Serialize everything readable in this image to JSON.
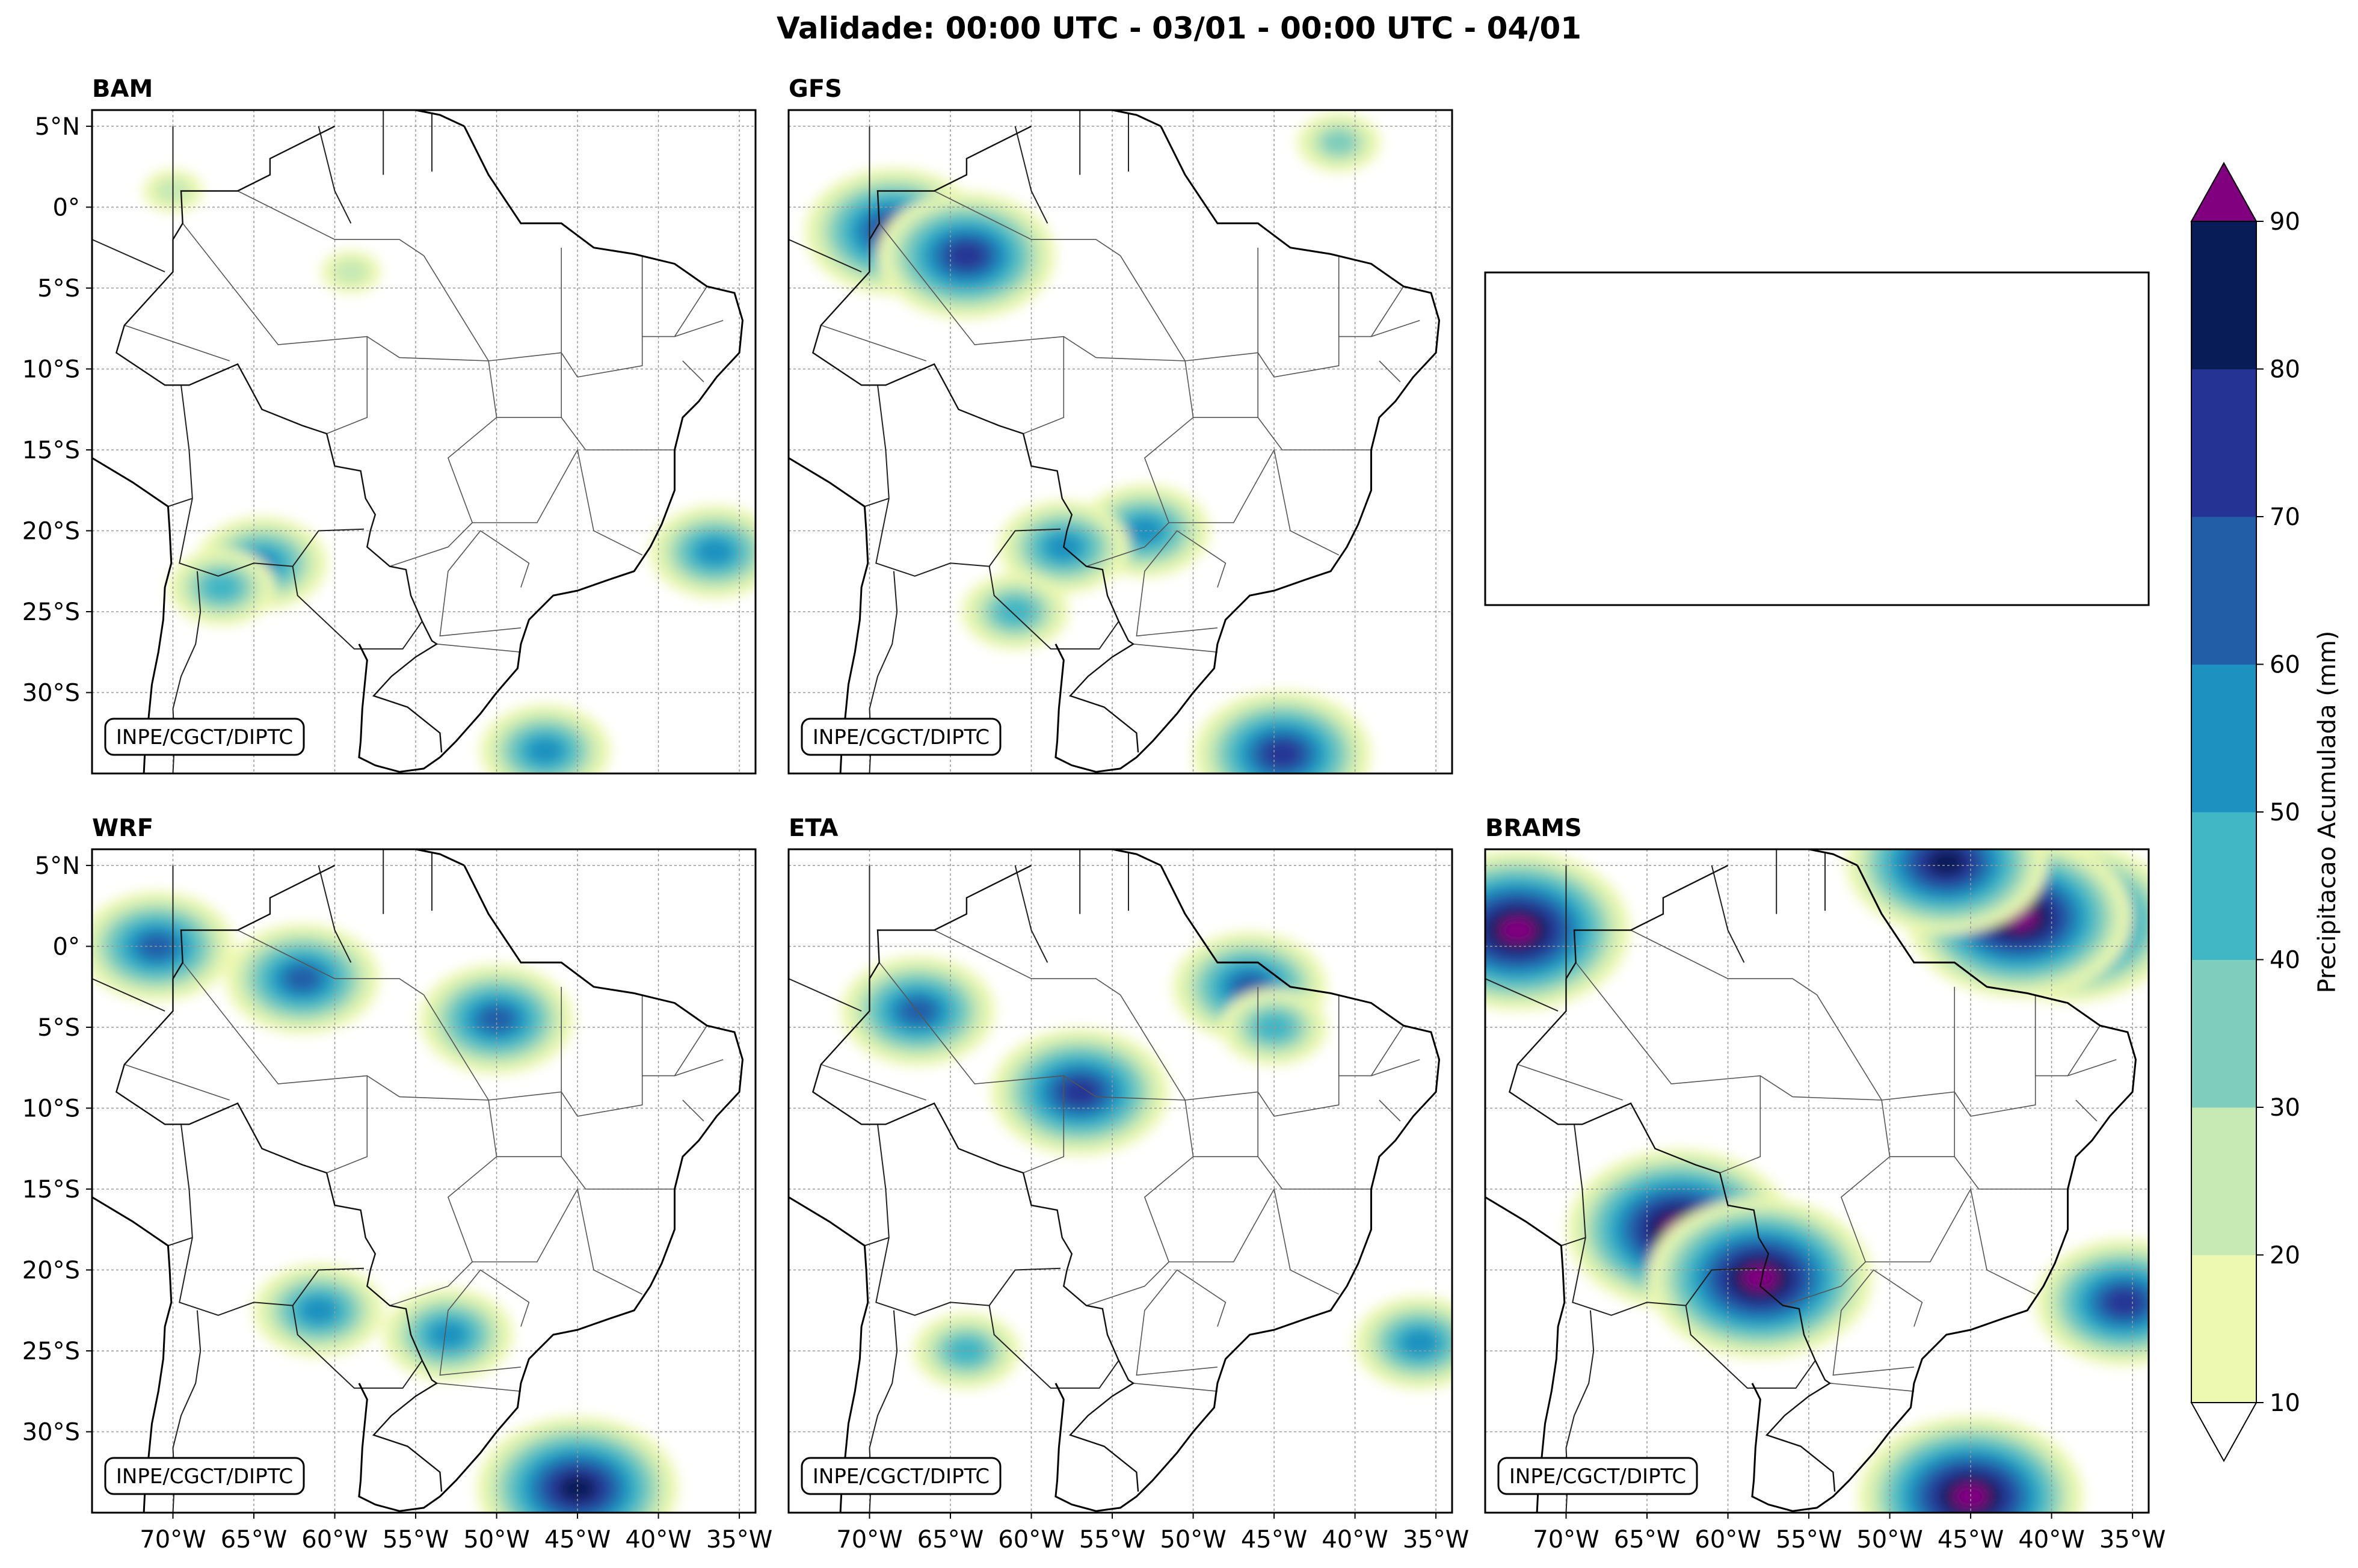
{
  "title": "Validade: 00:00 UTC - 03/01 - 00:00 UTC - 04/01",
  "credit": "INPE/CGCT/DIPTC",
  "lat_labels": [
    "5°N",
    "0°",
    "5°S",
    "10°S",
    "15°S",
    "20°S",
    "25°S",
    "30°S"
  ],
  "lon_labels": [
    "70°W",
    "65°W",
    "60°W",
    "55°W",
    "50°W",
    "45°W",
    "40°W",
    "35°W"
  ],
  "panels": [
    {
      "name": "BAM",
      "blobs": [
        {
          "lon": -47,
          "lat": -33.6,
          "level": 4
        },
        {
          "lon": -64.5,
          "lat": -22,
          "level": 4
        },
        {
          "lon": -36.5,
          "lat": -21.3,
          "level": 4
        },
        {
          "lon": -67,
          "lat": -23.5,
          "level": 3
        },
        {
          "lon": -59,
          "lat": -4,
          "level": 1
        },
        {
          "lon": -70,
          "lat": 1,
          "level": 1
        }
      ]
    },
    {
      "name": "GFS",
      "blobs": [
        {
          "lon": -68.5,
          "lat": -1.5,
          "level": 6
        },
        {
          "lon": -64,
          "lat": -3,
          "level": 6
        },
        {
          "lon": -44.5,
          "lat": -33.8,
          "level": 6
        },
        {
          "lon": -53,
          "lat": -20,
          "level": 4
        },
        {
          "lon": -58,
          "lat": -21,
          "level": 4
        },
        {
          "lon": -41,
          "lat": 4,
          "level": 2
        },
        {
          "lon": -61,
          "lat": -25,
          "level": 3
        }
      ]
    },
    {
      "name": "empty",
      "blobs": []
    },
    {
      "name": "WRF",
      "blobs": [
        {
          "lon": -45,
          "lat": -33.5,
          "level": 7
        },
        {
          "lon": -62,
          "lat": -2,
          "level": 5
        },
        {
          "lon": -50,
          "lat": -4.5,
          "level": 5
        },
        {
          "lon": -71,
          "lat": 0,
          "level": 5
        },
        {
          "lon": -61,
          "lat": -22.5,
          "level": 4
        },
        {
          "lon": -53,
          "lat": -24,
          "level": 4
        }
      ]
    },
    {
      "name": "ETA",
      "blobs": [
        {
          "lon": -57,
          "lat": -9,
          "level": 6
        },
        {
          "lon": -46.5,
          "lat": -2.5,
          "level": 5
        },
        {
          "lon": -67,
          "lat": -4,
          "level": 5
        },
        {
          "lon": -36,
          "lat": -24.5,
          "level": 4
        },
        {
          "lon": -45,
          "lat": -5,
          "level": 3
        },
        {
          "lon": -64,
          "lat": -25,
          "level": 3
        }
      ]
    },
    {
      "name": "BRAMS",
      "blobs": [
        {
          "lon": -39,
          "lat": 1.5,
          "level": 8
        },
        {
          "lon": -42,
          "lat": 1.8,
          "level": 8
        },
        {
          "lon": -63,
          "lat": -17.5,
          "level": 8
        },
        {
          "lon": -58,
          "lat": -20.5,
          "level": 8
        },
        {
          "lon": -45,
          "lat": -34,
          "level": 8
        },
        {
          "lon": -73,
          "lat": 1,
          "level": 8
        },
        {
          "lon": -46.5,
          "lat": 5.2,
          "level": 7
        },
        {
          "lon": -35.5,
          "lat": -22,
          "level": 6
        }
      ]
    }
  ],
  "colorbar": {
    "label": "Precipitacao Acumulada (mm)",
    "ticks": [
      "10",
      "20",
      "30",
      "40",
      "50",
      "60",
      "70",
      "80",
      "90"
    ],
    "colors": [
      "#edf8b1",
      "#c7e9b4",
      "#7fcdbb",
      "#41b6c4",
      "#1d91c0",
      "#225ea8",
      "#253494",
      "#081d58"
    ],
    "extend_over_color": "#800080",
    "extend_under_color": "#ffffff"
  }
}
